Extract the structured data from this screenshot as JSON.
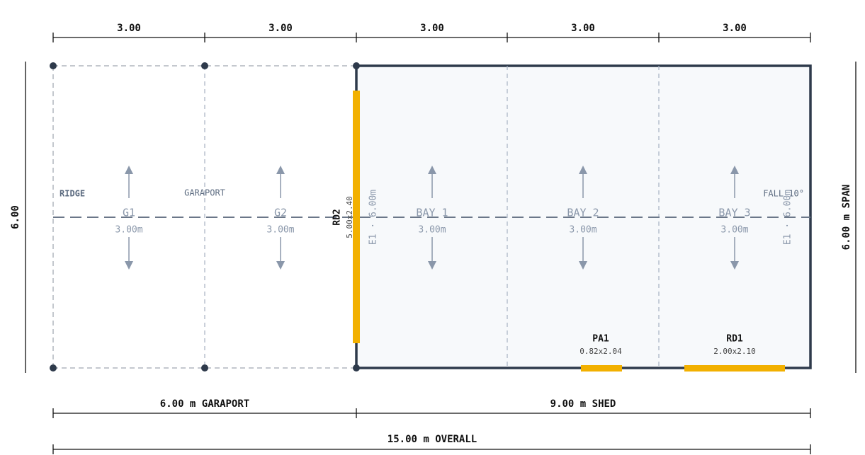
{
  "dimensions": {
    "top": [
      "3.00",
      "3.00",
      "3.00",
      "3.00",
      "3.00"
    ],
    "left": "6.00",
    "right": "6.00 m SPAN",
    "bottom": [
      "6.00 m GARAPORT",
      "9.00 m SHED"
    ],
    "overall": "15.00 m OVERALL"
  },
  "labels": {
    "ridge": "RIDGE",
    "garaport": "GARAPORT",
    "fall": "FALL 10°"
  },
  "bays": [
    {
      "name": "G1",
      "width": "3.00m"
    },
    {
      "name": "G2",
      "width": "3.00m"
    },
    {
      "name": "BAY 1",
      "width": "3.00m"
    },
    {
      "name": "BAY 2",
      "width": "3.00m"
    },
    {
      "name": "BAY 3",
      "width": "3.00m"
    }
  ],
  "walls": {
    "left": "E1 · 6.00m",
    "right": "E1 · 6.00m"
  },
  "doors": [
    {
      "name": "RD2",
      "size": "5.00x2.40"
    },
    {
      "name": "PA1",
      "size": "0.82x2.04"
    },
    {
      "name": "RD1",
      "size": "2.00x2.10"
    }
  ]
}
